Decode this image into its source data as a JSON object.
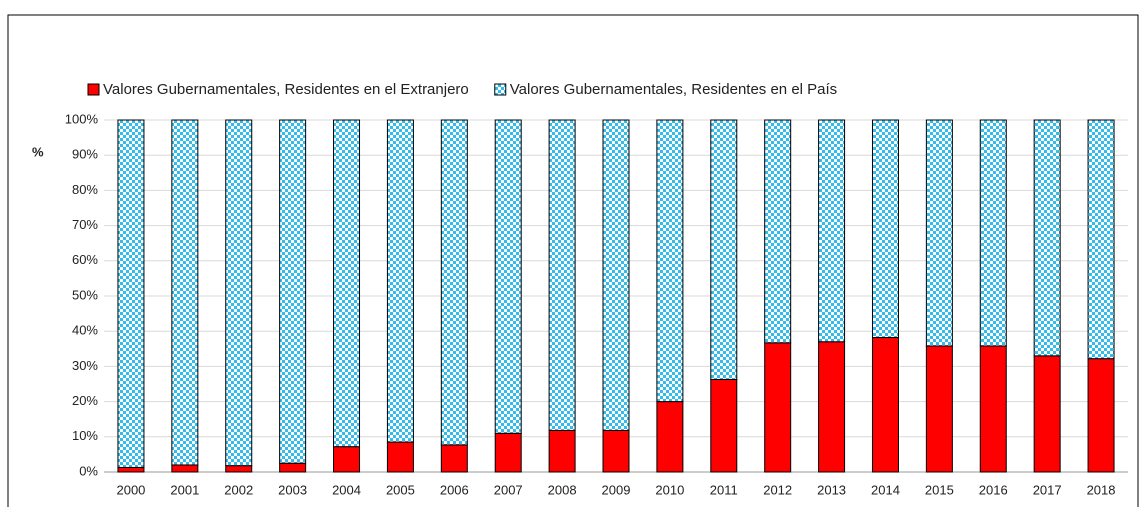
{
  "chart_data": {
    "type": "bar",
    "stacked": true,
    "y_axis_label": "%",
    "categories": [
      "2000",
      "2001",
      "2002",
      "2003",
      "2004",
      "2005",
      "2006",
      "2007",
      "2008",
      "2009",
      "2010",
      "2011",
      "2012",
      "2013",
      "2014",
      "2015",
      "2016",
      "2017",
      "2018"
    ],
    "series": [
      {
        "name": "Valores Gubernamentales, Residentes en el Extranjero",
        "color": "#ff0000",
        "values": [
          1.3,
          2,
          1.8,
          2.5,
          7.2,
          8.5,
          7.7,
          11,
          11.8,
          11.8,
          20,
          26.3,
          36.7,
          37,
          38.2,
          35.8,
          35.8,
          33,
          32.2
        ]
      },
      {
        "name": "Valores Gubernamentales, Residentes en el País",
        "color": "#33bbee",
        "pattern": "checker",
        "values": [
          98.7,
          98,
          98.2,
          97.5,
          92.8,
          91.5,
          92.3,
          89,
          88.2,
          88.2,
          80,
          73.7,
          63.3,
          63,
          61.8,
          64.2,
          64.2,
          67,
          67.8
        ]
      }
    ],
    "ylim": [
      0,
      100
    ],
    "yticks": [
      {
        "value": 0,
        "label": "0%"
      },
      {
        "value": 10,
        "label": "10%"
      },
      {
        "value": 20,
        "label": "20%"
      },
      {
        "value": 30,
        "label": "30%"
      },
      {
        "value": 40,
        "label": "40%"
      },
      {
        "value": 50,
        "label": "50%"
      },
      {
        "value": 60,
        "label": "60%"
      },
      {
        "value": 70,
        "label": "70%"
      },
      {
        "value": 80,
        "label": "80%"
      },
      {
        "value": 90,
        "label": "90%"
      },
      {
        "value": 100,
        "label": "100%"
      }
    ],
    "grid": true,
    "legend": "top"
  }
}
